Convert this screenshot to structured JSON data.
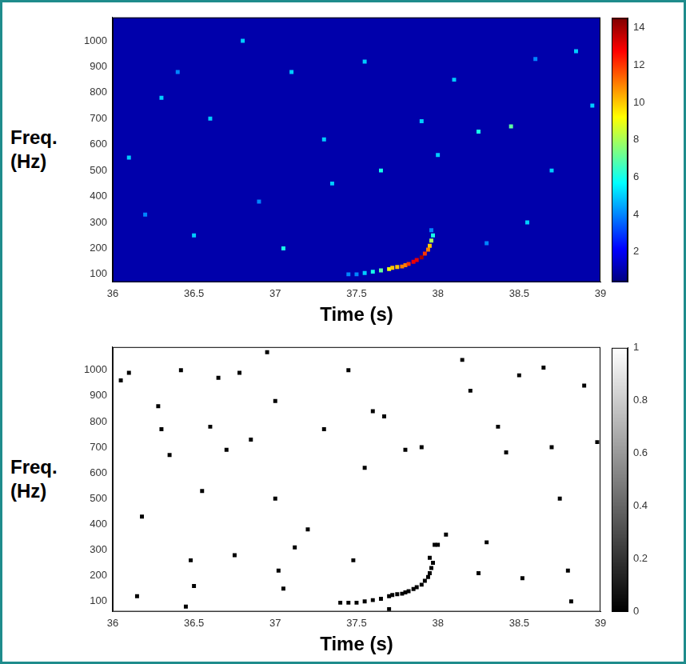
{
  "chart_data": [
    {
      "type": "heatmap",
      "color": "jet",
      "x_label": "Time (s)",
      "y_label": [
        "Freq.",
        "(Hz)"
      ],
      "xlim": [
        36,
        39
      ],
      "xticks": [
        36,
        36.5,
        37,
        37.5,
        38,
        38.5,
        39
      ],
      "ylim": [
        70,
        1090
      ],
      "yticks": [
        100,
        200,
        300,
        400,
        500,
        600,
        700,
        800,
        900,
        1000
      ],
      "background_value": 1,
      "colorbar_range": [
        0.4,
        14.5
      ],
      "colorbar_ticks": [
        2,
        4,
        6,
        8,
        10,
        12,
        14
      ],
      "cells": [
        [
          37.45,
          100,
          4
        ],
        [
          37.5,
          100,
          4
        ],
        [
          37.55,
          105,
          5
        ],
        [
          37.6,
          110,
          6
        ],
        [
          37.65,
          115,
          7
        ],
        [
          37.7,
          120,
          9
        ],
        [
          37.72,
          125,
          10
        ],
        [
          37.75,
          128,
          10
        ],
        [
          37.78,
          130,
          11
        ],
        [
          37.8,
          135,
          11
        ],
        [
          37.82,
          140,
          12
        ],
        [
          37.85,
          148,
          13
        ],
        [
          37.87,
          155,
          13
        ],
        [
          37.9,
          165,
          14
        ],
        [
          37.92,
          180,
          12
        ],
        [
          37.94,
          195,
          11
        ],
        [
          37.95,
          210,
          10
        ],
        [
          37.96,
          230,
          8
        ],
        [
          37.97,
          250,
          6
        ],
        [
          37.96,
          270,
          4
        ],
        [
          36.1,
          550,
          5
        ],
        [
          36.3,
          780,
          5
        ],
        [
          36.5,
          250,
          5
        ],
        [
          36.6,
          700,
          5
        ],
        [
          36.8,
          1000,
          5
        ],
        [
          37.05,
          200,
          6
        ],
        [
          37.1,
          880,
          5
        ],
        [
          37.3,
          620,
          5
        ],
        [
          37.55,
          920,
          5
        ],
        [
          37.65,
          500,
          6
        ],
        [
          37.9,
          690,
          5
        ],
        [
          38.1,
          850,
          5
        ],
        [
          38.25,
          650,
          6
        ],
        [
          38.45,
          670,
          7
        ],
        [
          38.55,
          300,
          5
        ],
        [
          38.7,
          500,
          5
        ],
        [
          38.85,
          960,
          5
        ],
        [
          38.95,
          750,
          5
        ],
        [
          36.2,
          330,
          4
        ],
        [
          36.9,
          380,
          4
        ],
        [
          37.35,
          450,
          5
        ],
        [
          38.0,
          560,
          5
        ],
        [
          38.3,
          220,
          4
        ],
        [
          38.6,
          930,
          4
        ],
        [
          36.4,
          880,
          4
        ]
      ]
    },
    {
      "type": "heatmap",
      "color": "gray",
      "x_label": "Time (s)",
      "y_label": [
        "Freq.",
        "(Hz)"
      ],
      "xlim": [
        36,
        39
      ],
      "xticks": [
        36,
        36.5,
        37,
        37.5,
        38,
        38.5,
        39
      ],
      "ylim": [
        60,
        1090
      ],
      "yticks": [
        100,
        200,
        300,
        400,
        500,
        600,
        700,
        800,
        900,
        1000
      ],
      "background_value": 1,
      "colorbar_range": [
        0,
        1
      ],
      "colorbar_ticks": [
        0,
        0.2,
        0.4,
        0.6,
        0.8,
        1
      ],
      "cells": [
        [
          37.4,
          95,
          0
        ],
        [
          37.45,
          95,
          0
        ],
        [
          37.5,
          95,
          0
        ],
        [
          37.55,
          100,
          0
        ],
        [
          37.6,
          105,
          0
        ],
        [
          37.65,
          110,
          0
        ],
        [
          37.7,
          120,
          0
        ],
        [
          37.72,
          125,
          0
        ],
        [
          37.75,
          128,
          0
        ],
        [
          37.78,
          130,
          0
        ],
        [
          37.8,
          135,
          0
        ],
        [
          37.82,
          140,
          0
        ],
        [
          37.85,
          148,
          0
        ],
        [
          37.87,
          155,
          0
        ],
        [
          37.9,
          165,
          0
        ],
        [
          37.92,
          180,
          0
        ],
        [
          37.94,
          195,
          0
        ],
        [
          37.95,
          210,
          0
        ],
        [
          37.96,
          230,
          0
        ],
        [
          37.97,
          250,
          0
        ],
        [
          37.95,
          270,
          0
        ],
        [
          37.98,
          320,
          0
        ],
        [
          37.7,
          70,
          0
        ],
        [
          36.05,
          960,
          0
        ],
        [
          36.1,
          990,
          0
        ],
        [
          36.15,
          120,
          0
        ],
        [
          36.28,
          860,
          0
        ],
        [
          36.3,
          770,
          0
        ],
        [
          36.35,
          670,
          0
        ],
        [
          36.42,
          1000,
          0
        ],
        [
          36.45,
          80,
          0
        ],
        [
          36.5,
          160,
          0
        ],
        [
          36.55,
          530,
          0
        ],
        [
          36.6,
          780,
          0
        ],
        [
          36.65,
          970,
          0
        ],
        [
          36.7,
          690,
          0
        ],
        [
          36.78,
          990,
          0
        ],
        [
          36.85,
          730,
          0
        ],
        [
          36.95,
          1070,
          0
        ],
        [
          37.0,
          880,
          0
        ],
        [
          37.0,
          500,
          0
        ],
        [
          37.02,
          220,
          0
        ],
        [
          37.05,
          150,
          0
        ],
        [
          37.12,
          310,
          0
        ],
        [
          37.2,
          380,
          0
        ],
        [
          37.3,
          770,
          0
        ],
        [
          37.45,
          1000,
          0
        ],
        [
          37.48,
          260,
          0
        ],
        [
          37.55,
          620,
          0
        ],
        [
          37.6,
          840,
          0
        ],
        [
          37.67,
          820,
          0
        ],
        [
          37.8,
          690,
          0
        ],
        [
          37.9,
          700,
          0
        ],
        [
          38.0,
          320,
          0
        ],
        [
          38.05,
          360,
          0
        ],
        [
          38.15,
          1040,
          0
        ],
        [
          38.2,
          920,
          0
        ],
        [
          38.25,
          210,
          0
        ],
        [
          38.3,
          330,
          0
        ],
        [
          38.37,
          780,
          0
        ],
        [
          38.42,
          680,
          0
        ],
        [
          38.5,
          980,
          0
        ],
        [
          38.52,
          190,
          0
        ],
        [
          38.65,
          1010,
          0
        ],
        [
          38.7,
          700,
          0
        ],
        [
          38.75,
          500,
          0
        ],
        [
          38.8,
          220,
          0
        ],
        [
          38.82,
          100,
          0
        ],
        [
          38.9,
          940,
          0
        ],
        [
          38.98,
          720,
          0
        ],
        [
          36.18,
          430,
          0
        ],
        [
          36.48,
          260,
          0
        ],
        [
          36.75,
          280,
          0
        ]
      ]
    }
  ]
}
